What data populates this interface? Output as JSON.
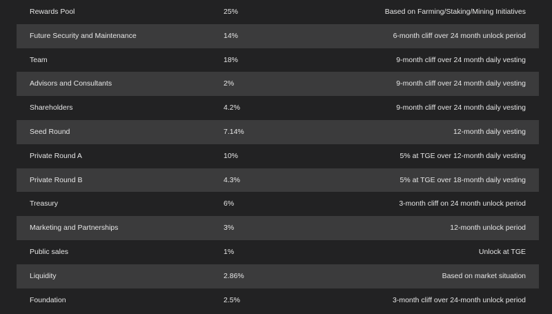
{
  "table": {
    "rows": [
      [
        "Rewards Pool",
        "25%",
        "Based on Farming/Staking/Mining Initiatives"
      ],
      [
        "Future Security and Maintenance",
        "14%",
        "6-month cliff over 24 month unlock period"
      ],
      [
        "Team",
        "18%",
        "9-month cliff over 24 month daily vesting"
      ],
      [
        "Advisors and Consultants",
        "2%",
        "9-month cliff over 24 month daily vesting"
      ],
      [
        "Shareholders",
        "4.2%",
        "9-month cliff over 24 month daily vesting"
      ],
      [
        "Seed Round",
        "7.14%",
        "12-month daily vesting"
      ],
      [
        "Private Round A",
        "10%",
        "5% at TGE over 12-month daily vesting"
      ],
      [
        "Private Round B",
        "4.3%",
        "5% at TGE over 18-month daily vesting"
      ],
      [
        "Treasury",
        "6%",
        "3-month cliff on 24 month unlock period"
      ],
      [
        "Marketing and Partnerships",
        "3%",
        "12-month unlock period"
      ],
      [
        "Public sales",
        "1%",
        "Unlock at TGE"
      ],
      [
        "Liquidity",
        "2.86%",
        "Based on market situation"
      ],
      [
        "Foundation",
        "2.5%",
        "3-month cliff over 24-month unlock period"
      ]
    ]
  }
}
